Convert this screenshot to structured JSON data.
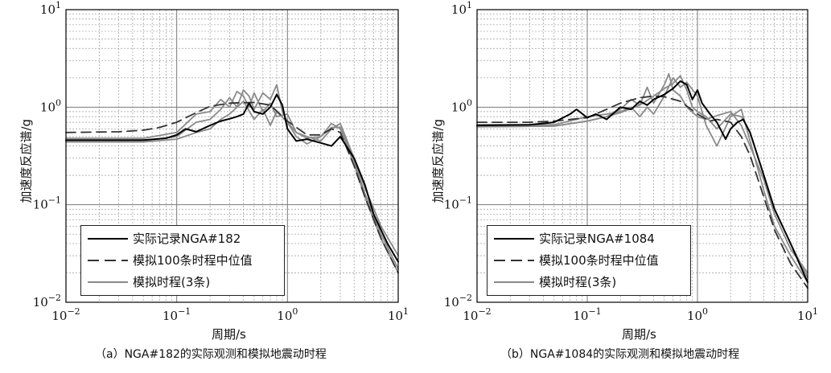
{
  "panels": [
    {
      "caption": "（a）NGA#182的实际观测和模拟地震动时程",
      "legend": [
        "实际记录NGA#182",
        "模拟100条时程中位值",
        "模拟时程(3条)"
      ]
    },
    {
      "caption": "（b）NGA#1084的实际观测和模拟地震动时程",
      "legend": [
        "实际记录NGA#1084",
        "模拟100条时程中位值",
        "模拟时程(3条)"
      ]
    }
  ],
  "chart_data": [
    {
      "type": "line",
      "title": "",
      "xlabel": "周期/s",
      "ylabel": "加速度反应谱/g",
      "xscale": "log",
      "yscale": "log",
      "xlim": [
        0.01,
        10
      ],
      "ylim": [
        0.01,
        10
      ],
      "x_ticks": [
        "10^-2",
        "10^-1",
        "10^0",
        "10^1"
      ],
      "y_ticks": [
        "10^-2",
        "10^-1",
        "10^0",
        "10^1"
      ],
      "grid": true,
      "legend_position": "bottom-left",
      "series": [
        {
          "name": "实际记录NGA#182",
          "style": "solid",
          "color": "#000000",
          "x": [
            0.01,
            0.05,
            0.08,
            0.1,
            0.12,
            0.15,
            0.2,
            0.25,
            0.3,
            0.35,
            0.4,
            0.45,
            0.5,
            0.6,
            0.7,
            0.8,
            0.9,
            1.0,
            1.2,
            1.5,
            2.0,
            2.5,
            3.0,
            4.0,
            5.0,
            6.0,
            8.0,
            10.0
          ],
          "y": [
            0.46,
            0.46,
            0.48,
            0.52,
            0.6,
            0.56,
            0.65,
            0.72,
            0.76,
            0.8,
            0.85,
            1.1,
            0.9,
            0.85,
            1.0,
            1.35,
            1.05,
            0.6,
            0.45,
            0.47,
            0.43,
            0.4,
            0.5,
            0.3,
            0.16,
            0.08,
            0.04,
            0.026
          ]
        },
        {
          "name": "模拟100条时程中位值",
          "style": "dashed",
          "color": "#333333",
          "x": [
            0.01,
            0.03,
            0.05,
            0.07,
            0.1,
            0.15,
            0.2,
            0.3,
            0.5,
            0.7,
            1.0,
            1.5,
            2.0,
            2.5,
            3.0,
            4.0,
            5.0,
            7.0,
            10.0
          ],
          "y": [
            0.55,
            0.56,
            0.58,
            0.62,
            0.7,
            0.88,
            1.02,
            1.1,
            1.12,
            1.05,
            0.72,
            0.52,
            0.52,
            0.6,
            0.55,
            0.25,
            0.12,
            0.045,
            0.02
          ]
        },
        {
          "name": "模拟时程(3条)",
          "style": "solid",
          "color": "#8a8a8a",
          "x": [
            0.01,
            0.05,
            0.1,
            0.15,
            0.2,
            0.25,
            0.3,
            0.35,
            0.4,
            0.45,
            0.5,
            0.6,
            0.7,
            0.8,
            1.0,
            1.2,
            1.5,
            2.0,
            2.5,
            3.0,
            4.0,
            5.0,
            7.0,
            10.0
          ],
          "y": [
            0.48,
            0.48,
            0.55,
            0.85,
            0.9,
            1.2,
            1.0,
            1.45,
            1.3,
            1.0,
            1.4,
            0.9,
            1.1,
            0.8,
            0.85,
            0.55,
            0.5,
            0.45,
            0.6,
            0.68,
            0.3,
            0.15,
            0.06,
            0.03
          ]
        },
        {
          "name": "模拟时程(3条)",
          "style": "solid",
          "color": "#8a8a8a",
          "x": [
            0.01,
            0.05,
            0.1,
            0.15,
            0.2,
            0.25,
            0.3,
            0.35,
            0.4,
            0.45,
            0.5,
            0.6,
            0.7,
            0.8,
            0.9,
            1.0,
            1.2,
            1.5,
            2.0,
            2.5,
            3.0,
            4.0,
            5.0,
            7.0,
            10.0
          ],
          "y": [
            0.45,
            0.45,
            0.5,
            0.7,
            0.75,
            0.95,
            1.25,
            1.0,
            1.5,
            1.3,
            0.95,
            1.4,
            1.2,
            1.7,
            0.9,
            0.7,
            0.5,
            0.42,
            0.5,
            0.62,
            0.62,
            0.28,
            0.13,
            0.05,
            0.022
          ]
        },
        {
          "name": "模拟时程(3条)",
          "style": "solid",
          "color": "#8a8a8a",
          "x": [
            0.01,
            0.05,
            0.1,
            0.15,
            0.2,
            0.25,
            0.3,
            0.4,
            0.5,
            0.6,
            0.7,
            0.8,
            1.0,
            1.2,
            1.5,
            2.0,
            2.5,
            3.0,
            4.0,
            5.0,
            7.0,
            10.0
          ],
          "y": [
            0.44,
            0.44,
            0.47,
            0.55,
            0.6,
            0.75,
            0.85,
            1.15,
            0.75,
            0.95,
            0.65,
            0.9,
            0.7,
            0.55,
            0.48,
            0.5,
            0.68,
            0.6,
            0.26,
            0.12,
            0.045,
            0.02
          ]
        }
      ]
    },
    {
      "type": "line",
      "title": "",
      "xlabel": "周期/s",
      "ylabel": "加速度反应谱/g",
      "xscale": "log",
      "yscale": "log",
      "xlim": [
        0.01,
        10
      ],
      "ylim": [
        0.01,
        10
      ],
      "x_ticks": [
        "10^-2",
        "10^-1",
        "10^0",
        "10^1"
      ],
      "y_ticks": [
        "10^-2",
        "10^-1",
        "10^0",
        "10^1"
      ],
      "grid": true,
      "legend_position": "bottom-left",
      "series": [
        {
          "name": "实际记录NGA#1084",
          "style": "solid",
          "color": "#000000",
          "x": [
            0.01,
            0.03,
            0.05,
            0.07,
            0.08,
            0.1,
            0.12,
            0.15,
            0.2,
            0.25,
            0.3,
            0.35,
            0.4,
            0.5,
            0.6,
            0.7,
            0.8,
            0.9,
            1.0,
            1.1,
            1.3,
            1.5,
            1.8,
            2.0,
            2.3,
            2.6,
            3.0,
            4.0,
            5.0,
            7.0,
            10.0
          ],
          "y": [
            0.65,
            0.66,
            0.7,
            0.85,
            0.95,
            0.78,
            0.85,
            0.75,
            1.0,
            0.95,
            1.15,
            1.05,
            1.2,
            1.35,
            1.55,
            1.85,
            1.7,
            1.2,
            1.5,
            1.1,
            0.85,
            0.7,
            0.47,
            0.6,
            0.7,
            0.75,
            0.55,
            0.2,
            0.09,
            0.04,
            0.016
          ]
        },
        {
          "name": "模拟100条时程中位值",
          "style": "dashed",
          "color": "#333333",
          "x": [
            0.01,
            0.03,
            0.05,
            0.1,
            0.15,
            0.2,
            0.3,
            0.4,
            0.5,
            0.7,
            1.0,
            1.3,
            1.5,
            2.0,
            2.5,
            3.0,
            4.0,
            5.0,
            7.0,
            10.0
          ],
          "y": [
            0.7,
            0.7,
            0.72,
            0.78,
            0.95,
            1.1,
            1.25,
            1.3,
            1.28,
            1.15,
            0.85,
            0.72,
            0.75,
            0.7,
            0.5,
            0.32,
            0.12,
            0.055,
            0.025,
            0.014
          ]
        },
        {
          "name": "模拟时程(3条)",
          "style": "solid",
          "color": "#8a8a8a",
          "x": [
            0.01,
            0.05,
            0.1,
            0.15,
            0.2,
            0.25,
            0.3,
            0.35,
            0.4,
            0.5,
            0.55,
            0.6,
            0.7,
            0.8,
            1.0,
            1.2,
            1.5,
            2.0,
            2.5,
            3.0,
            4.0,
            5.0,
            7.0,
            10.0
          ],
          "y": [
            0.63,
            0.64,
            0.72,
            0.8,
            0.95,
            1.2,
            1.05,
            1.6,
            1.1,
            1.7,
            2.2,
            1.5,
            1.3,
            1.0,
            0.8,
            0.75,
            0.82,
            0.9,
            0.65,
            0.4,
            0.18,
            0.08,
            0.035,
            0.02
          ]
        },
        {
          "name": "模拟时程(3条)",
          "style": "solid",
          "color": "#8a8a8a",
          "x": [
            0.01,
            0.05,
            0.1,
            0.15,
            0.2,
            0.25,
            0.3,
            0.35,
            0.4,
            0.5,
            0.6,
            0.7,
            0.8,
            1.0,
            1.2,
            1.5,
            2.0,
            2.5,
            3.0,
            4.0,
            5.0,
            7.0,
            10.0
          ],
          "y": [
            0.66,
            0.66,
            0.8,
            0.85,
            0.9,
            1.0,
            0.8,
            1.0,
            0.85,
            1.3,
            2.0,
            1.6,
            1.8,
            1.3,
            0.65,
            0.4,
            0.8,
            0.95,
            0.45,
            0.14,
            0.06,
            0.03,
            0.016
          ]
        },
        {
          "name": "模拟时程(3条)",
          "style": "solid",
          "color": "#8a8a8a",
          "x": [
            0.01,
            0.05,
            0.1,
            0.15,
            0.2,
            0.3,
            0.4,
            0.5,
            0.6,
            0.7,
            0.8,
            0.9,
            1.0,
            1.2,
            1.5,
            2.0,
            2.5,
            3.0,
            4.0,
            5.0,
            7.0,
            10.0
          ],
          "y": [
            0.63,
            0.64,
            0.72,
            0.8,
            0.88,
            1.05,
            1.3,
            1.55,
            1.75,
            2.1,
            1.5,
            1.0,
            0.9,
            0.8,
            0.6,
            0.85,
            0.8,
            0.55,
            0.2,
            0.09,
            0.04,
            0.018
          ]
        }
      ]
    }
  ]
}
